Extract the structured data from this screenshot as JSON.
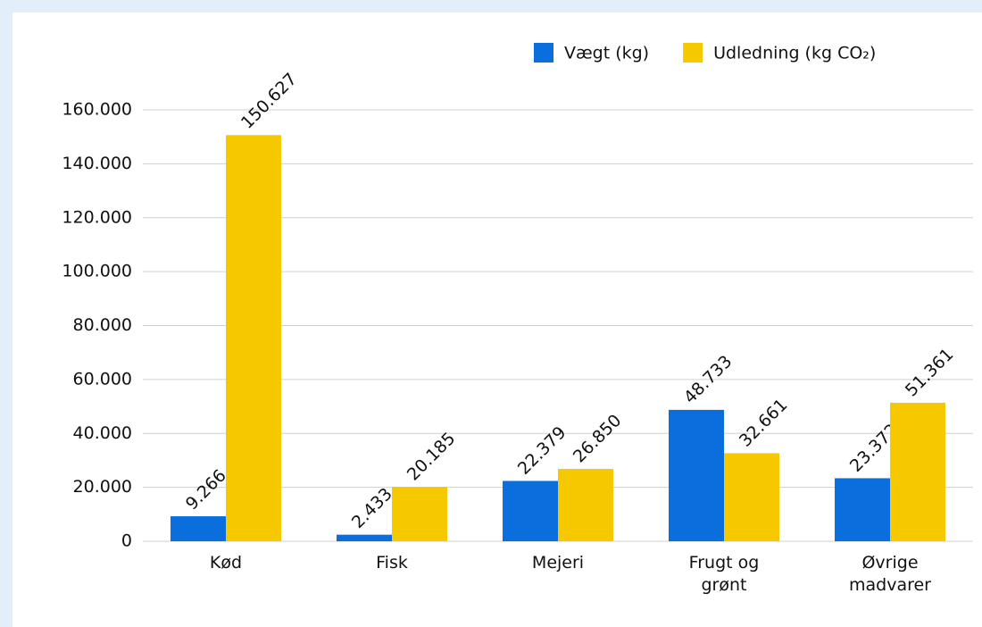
{
  "chart_data": {
    "type": "bar",
    "categories": [
      "Kød",
      "Fisk",
      "Mejeri",
      "Frugt og grønt",
      "Øvrige madvarer"
    ],
    "series": [
      {
        "name": "Vægt (kg)",
        "color": "#0a6fdc",
        "values": [
          9266,
          2433,
          22379,
          48733,
          23372
        ],
        "value_labels": [
          "9.266",
          "2.433",
          "22.379",
          "48.733",
          "23.372"
        ]
      },
      {
        "name": "Udledning (kg CO₂)",
        "color": "#f5c800",
        "values": [
          150627,
          20185,
          26850,
          32661,
          51361
        ],
        "value_labels": [
          "150.627",
          "20.185",
          "26.850",
          "32.661",
          "51.361"
        ]
      }
    ],
    "ylim": [
      0,
      160000
    ],
    "yticks": [
      0,
      {
        "value": 20000,
        "label": "20.000"
      },
      {
        "value": 40000,
        "label": "40.000"
      },
      {
        "value": 60000,
        "label": "60.000"
      },
      {
        "value": 80000,
        "label": "80.000"
      },
      {
        "value": 100000,
        "label": "100.000"
      },
      {
        "value": 120000,
        "label": "120.000"
      },
      {
        "value": 140000,
        "label": "140.000"
      },
      {
        "value": 160000,
        "label": "160.000"
      }
    ],
    "grid": true,
    "legend": "top-right"
  }
}
